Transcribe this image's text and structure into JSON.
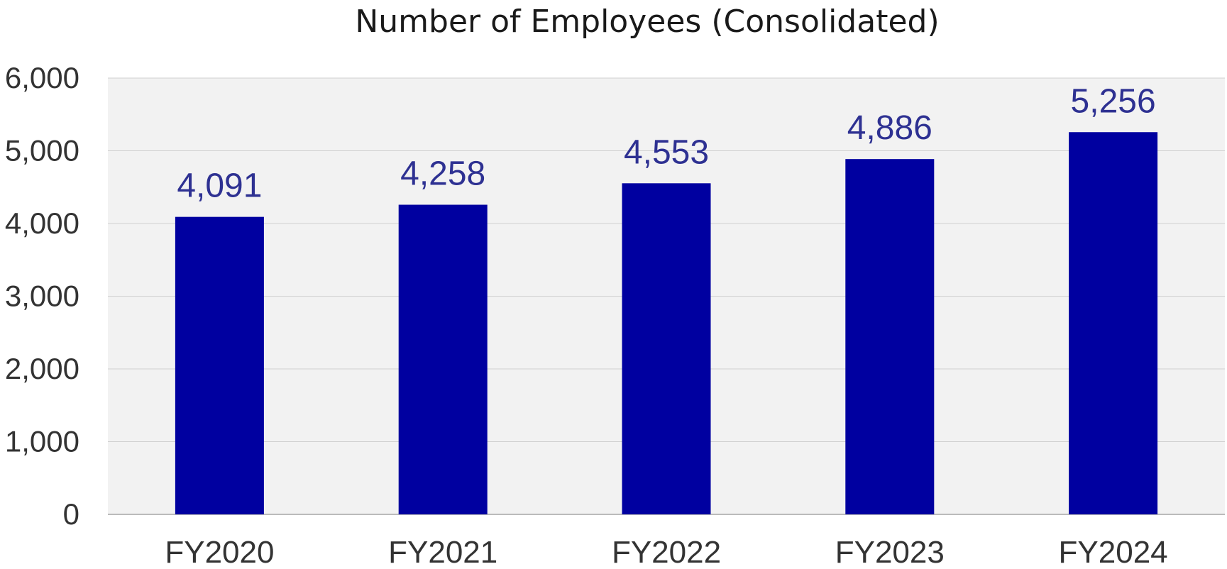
{
  "chart_data": {
    "type": "bar",
    "title": "Number of Employees (Consolidated)",
    "categories": [
      "FY2020",
      "FY2021",
      "FY2022",
      "FY2023",
      "FY2024"
    ],
    "values": [
      4091,
      4258,
      4553,
      4886,
      5256
    ],
    "value_labels": [
      "4,091",
      "4,258",
      "4,553",
      "4,886",
      "5,256"
    ],
    "y_tick_labels": [
      "0",
      "1,000",
      "2,000",
      "3,000",
      "4,000",
      "5,000",
      "6,000"
    ],
    "y_ticks": [
      0,
      1000,
      2000,
      3000,
      4000,
      5000,
      6000
    ],
    "xlabel": "",
    "ylabel": "",
    "ylim": [
      0,
      6000
    ],
    "grid": true,
    "legend": "none",
    "colors": {
      "bar": "#0000A0",
      "data_label": "#2E3192",
      "plot_background": "#F2F2F2",
      "gridline": "#D0D0D0"
    }
  }
}
